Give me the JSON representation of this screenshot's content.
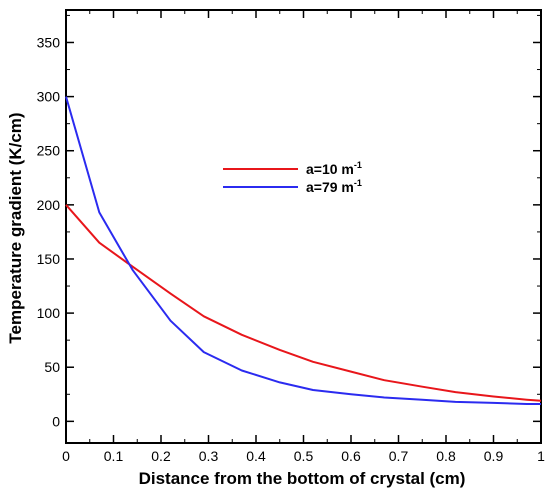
{
  "chart_data": {
    "type": "line",
    "title": "",
    "xlabel": "Distance from the bottom of crystal (cm)",
    "ylabel": "Temperature gradient (K/cm)",
    "xlim": [
      0,
      1
    ],
    "ylim": [
      -20,
      380
    ],
    "x_ticks": [
      0,
      0.1,
      0.2,
      0.3,
      0.4,
      0.5,
      0.6,
      0.7,
      0.8,
      0.9,
      1
    ],
    "x_tick_labels": [
      "0",
      "0.1",
      "0.2",
      "0.3",
      "0.4",
      "0.5",
      "0.6",
      "0.7",
      "0.8",
      "0.9",
      "1"
    ],
    "y_ticks": [
      0,
      50,
      100,
      150,
      200,
      250,
      300,
      350
    ],
    "y_tick_labels": [
      "0",
      "50",
      "100",
      "150",
      "200",
      "250",
      "300",
      "350"
    ],
    "grid": false,
    "legend_position": "center",
    "series": [
      {
        "name_main": "a=10 m",
        "name_sup": "-1",
        "color": "#e8161b",
        "x": [
          0,
          0.07,
          0.14,
          0.22,
          0.29,
          0.37,
          0.45,
          0.52,
          0.6,
          0.67,
          0.75,
          0.82,
          0.9,
          0.97,
          1
        ],
        "y": [
          200,
          165,
          143,
          118,
          97,
          80,
          66,
          55,
          46,
          38,
          32,
          27,
          23,
          20,
          19
        ]
      },
      {
        "name_main": "a=79 m",
        "name_sup": "-1",
        "color": "#2b2bf0",
        "x": [
          0,
          0.07,
          0.14,
          0.22,
          0.29,
          0.37,
          0.45,
          0.52,
          0.6,
          0.67,
          0.75,
          0.82,
          0.9,
          0.97,
          1
        ],
        "y": [
          300,
          193,
          140,
          93,
          64,
          47,
          36,
          29,
          25,
          22,
          20,
          18,
          17,
          16,
          16
        ]
      }
    ]
  }
}
